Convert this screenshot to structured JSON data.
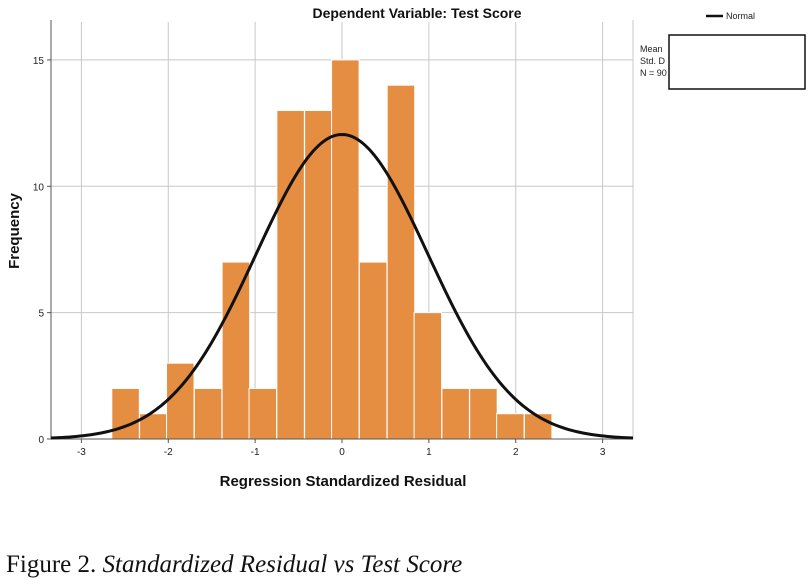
{
  "chart_data": {
    "type": "bar",
    "title": "Dependent Variable: Test Score",
    "xlabel": "Regression Standardized Residual",
    "ylabel": "Frequency",
    "xlim": [
      -3.35,
      3.35
    ],
    "ylim": [
      0,
      16.5
    ],
    "x_ticks": [
      -3,
      -2,
      -1,
      0,
      1,
      2,
      3
    ],
    "y_ticks": [
      0,
      5,
      10,
      15
    ],
    "grid": true,
    "bin_width": 0.3167,
    "bins": [
      {
        "x0": -2.65,
        "value": 2
      },
      {
        "x0": -2.33,
        "value": 1
      },
      {
        "x0": -2.02,
        "value": 3
      },
      {
        "x0": -1.7,
        "value": 2
      },
      {
        "x0": -1.38,
        "value": 7
      },
      {
        "x0": -1.07,
        "value": 2
      },
      {
        "x0": -0.75,
        "value": 13
      },
      {
        "x0": -0.43,
        "value": 13
      },
      {
        "x0": -0.12,
        "value": 15
      },
      {
        "x0": 0.2,
        "value": 7
      },
      {
        "x0": 0.52,
        "value": 14
      },
      {
        "x0": 0.83,
        "value": 5
      },
      {
        "x0": 1.15,
        "value": 2
      },
      {
        "x0": 1.47,
        "value": 2
      },
      {
        "x0": 1.78,
        "value": 1
      },
      {
        "x0": 2.1,
        "value": 1
      }
    ],
    "bar_color": "#E58E42",
    "bar_edge_color": "#ffffff",
    "normal_curve": {
      "mean": 0,
      "sd": 0.99,
      "n": 90,
      "peak": 12.05,
      "color": "#111111"
    },
    "legend": {
      "entries": [
        "Normal"
      ],
      "position": "top-right"
    },
    "stats_lines": [
      "Mean",
      "Std. D",
      "N = 90"
    ]
  },
  "caption": {
    "label": "Figure 2.",
    "title": "Standardized Residual vs Test Score"
  }
}
